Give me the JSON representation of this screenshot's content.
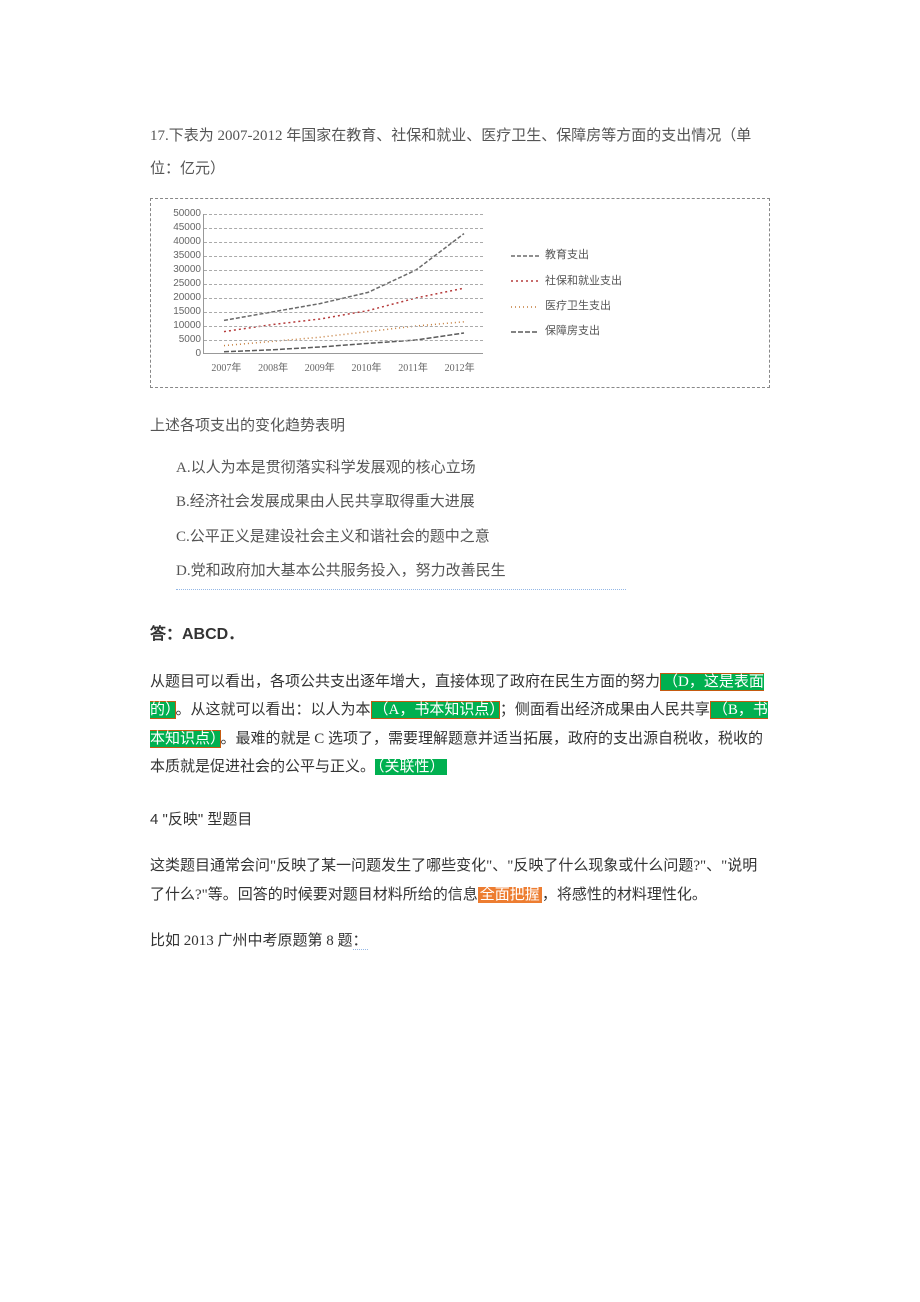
{
  "question": {
    "intro_line1": "17.下表为 2007-2012 年国家在教育、社保和就业、医疗卫生、保障房等方面的支出情况（单",
    "intro_line2": "位：亿元）",
    "subtext": "上述各项支出的变化趋势表明",
    "options": {
      "A": "A.以人为本是贯彻落实科学发展观的核心立场",
      "B": "B.经济社会发展成果由人民共享取得重大进展",
      "C": "C.公平正义是建设社会主义和谐社会的题中之意",
      "D": "D.党和政府加大基本公共服务投入，努力改善民生"
    }
  },
  "chart": {
    "type": "line",
    "ylim": [
      0,
      50000
    ],
    "ytick_step": 5000,
    "yticks": [
      "0",
      "5000",
      "10000",
      "15000",
      "20000",
      "25000",
      "30000",
      "35000",
      "40000",
      "45000",
      "50000"
    ],
    "categories": [
      "2007年",
      "2008年",
      "2009年",
      "2010年",
      "2011年",
      "2012年"
    ],
    "grid_color": "#aaaaaa",
    "series": [
      {
        "name": "教育支出",
        "color": "#6a6a6a",
        "dash": "4 2",
        "values": [
          12000,
          15000,
          18000,
          22000,
          30000,
          43000
        ]
      },
      {
        "name": "社保和就业支出",
        "color": "#b53a3a",
        "dash": "2 3",
        "values": [
          8000,
          10500,
          12500,
          15500,
          20000,
          23500
        ]
      },
      {
        "name": "医疗卫生支出",
        "color": "#c47c3a",
        "dash": "1 3",
        "values": [
          3000,
          4500,
          6000,
          8000,
          10000,
          11500
        ]
      },
      {
        "name": "保障房支出",
        "color": "#5a5a5a",
        "dash": "5 2",
        "values": [
          800,
          1500,
          2500,
          3800,
          5000,
          7500
        ]
      }
    ]
  },
  "answer": {
    "header": "答：ABCD．",
    "explain_parts": {
      "p1": "从题目可以看出，各项公共支出逐年增大，直接体现了政府在民生方面的努力",
      "hD": "（D，这是表面的）",
      "p2": "。从这就可以看出：以人为本",
      "hA": "（A，书本知识点）",
      "p3": "；侧面看出经济成果由人民共享",
      "hB": "（B，书本知识点）",
      "p4": "。最难的就是 C 选项了，需要理解题意并适当拓展，政府的支出源自税收，税收的本质就是促进社会的公平与正义。",
      "hRel": "（关联性）"
    }
  },
  "section4": {
    "title": "4 \"反映\" 型题目",
    "para_parts": {
      "p1": "这类题目通常会问\"反映了某一问题发生了哪些变化\"、\"反映了什么现象或什么问题?\"、\"说明了什么?\"等。回答的时候要对题目材料所给的信息",
      "hFull": "全面把握",
      "p2": "，将感性的材料理性化。"
    },
    "example_ref_parts": {
      "p1": "比如 2013 广州中考原题第 8 题",
      "colon": "："
    }
  }
}
